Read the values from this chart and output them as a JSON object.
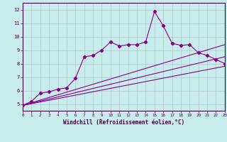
{
  "xlabel": "Windchill (Refroidissement éolien,°C)",
  "background_color": "#c8ecec",
  "grid_color": "#b0c8c8",
  "line_color": "#880088",
  "xlim": [
    0,
    23
  ],
  "ylim": [
    4.5,
    12.5
  ],
  "xticks": [
    0,
    1,
    2,
    3,
    4,
    5,
    6,
    7,
    8,
    9,
    10,
    11,
    12,
    13,
    14,
    15,
    16,
    17,
    18,
    19,
    20,
    21,
    22,
    23
  ],
  "yticks": [
    5,
    6,
    7,
    8,
    9,
    10,
    11,
    12
  ],
  "series": [
    [
      0,
      4.9
    ],
    [
      1,
      5.2
    ],
    [
      2,
      5.8
    ],
    [
      3,
      5.9
    ],
    [
      4,
      6.1
    ],
    [
      5,
      6.2
    ],
    [
      6,
      6.9
    ],
    [
      7,
      8.5
    ],
    [
      8,
      8.6
    ],
    [
      9,
      9.0
    ],
    [
      10,
      9.6
    ],
    [
      11,
      9.3
    ],
    [
      12,
      9.4
    ],
    [
      13,
      9.4
    ],
    [
      14,
      9.6
    ],
    [
      15,
      11.85
    ],
    [
      16,
      10.8
    ],
    [
      17,
      9.5
    ],
    [
      18,
      9.35
    ],
    [
      19,
      9.4
    ],
    [
      20,
      8.8
    ],
    [
      21,
      8.6
    ],
    [
      22,
      8.3
    ],
    [
      23,
      8.0
    ]
  ],
  "line2": [
    [
      0,
      4.9
    ],
    [
      23,
      9.4
    ]
  ],
  "line3": [
    [
      0,
      4.9
    ],
    [
      23,
      8.5
    ]
  ],
  "line4": [
    [
      0,
      4.9
    ],
    [
      23,
      7.8
    ]
  ]
}
